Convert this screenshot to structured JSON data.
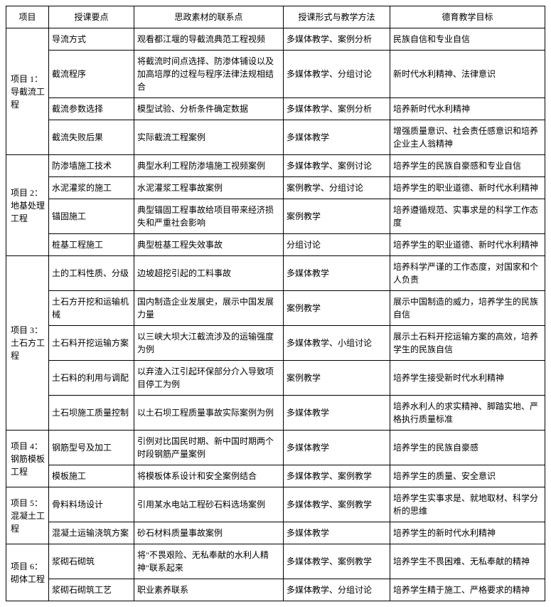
{
  "headers": {
    "project": "项目",
    "point": "授课要点",
    "material": "思政素材的联系点",
    "method": "授课形式与教学方法",
    "goal": "德育教学目标"
  },
  "projects": [
    {
      "label": "项目 1：导截流工程",
      "rows": [
        {
          "point": "导流方式",
          "material": "观看都江堰的导截流典范工程视频",
          "method": "多媒体教学、案例分析",
          "goal": "民族自信和专业自信"
        },
        {
          "point": "截流程序",
          "material": "将截流时间点选择、防渗体铺设以及加高培厚的过程与程序法律法规相结合",
          "method": "多媒体教学、分组讨论",
          "goal": "新时代水利精神、法律意识"
        },
        {
          "point": "截流参数选择",
          "material": "模型试验、分析条件确定数据",
          "method": "多媒体教学、案例分析",
          "goal": "培养新时代水利精神"
        },
        {
          "point": "截流失败后果",
          "material": "实际截流工程案例",
          "method": "多媒体教学",
          "goal": "增强质量意识、社会责任感意识和培养企业主人翁精神"
        }
      ]
    },
    {
      "label": "项目 2：地基处理工程",
      "rows": [
        {
          "point": "防渗墙施工技术",
          "material": "典型水利工程防渗墙施工视频案例",
          "method": "多媒体教学、案例讨论",
          "goal": "培养学生的民族自豪感和专业自信"
        },
        {
          "point": "水泥灌浆的施工",
          "material": "水泥灌浆工程事故案例",
          "method": "案例教学、分组讨论",
          "goal": "培养学生的职业道德、新时代水利精神"
        },
        {
          "point": "锚固施工",
          "material": "典型锚固工程事故给项目带来经济损失和严重社会影响",
          "method": "案例教学",
          "goal": "培养遵循规范、实事求是的科学工作态度"
        },
        {
          "point": "桩基工程施工",
          "material": "典型桩基工程失效事故",
          "method": "分组讨论",
          "goal": "培养学生的职业道德、新时代水利精神"
        }
      ]
    },
    {
      "label": "项目 3：土石方工程",
      "rows": [
        {
          "point": "土的工料性质、分级",
          "material": "边坡超挖引起的工料事故",
          "method": "多媒体教学",
          "goal": "培养科学严谨的工作态度，对国家和个人负责"
        },
        {
          "point": "土石方开挖和运输机械",
          "material": "国内制造企业发展史，展示中国发展力量",
          "method": "案例教学",
          "goal": "展示中国制造的威力，培养学生的民族自信"
        },
        {
          "point": "土石料开挖运输方案",
          "material": "以三峡大坝大江截流涉及的运输强度为例",
          "method": "多媒体教学、小组讨论",
          "goal": "展示土石料开挖运输方案的高效，培养学生的民族自信"
        },
        {
          "point": "土石料的利用与调配",
          "material": "以弃渣入江引起环保部分介入导致项目停工为例",
          "method": "案例教学",
          "goal": "培养学生接受新时代水利精神"
        },
        {
          "point": "土石坝施工质量控制",
          "material": "以土石坝工程质量事故实际案例为例",
          "method": "多媒体教学",
          "goal": "培养水利人的求实精神、脚踏实地、严格执行质量标准"
        }
      ]
    },
    {
      "label": "项目 4：钢筋模板工程",
      "rows": [
        {
          "point": "钢筋型号及加工",
          "material": "引例对比国民时期、新中国时期两个时段钢筋产量案例",
          "method": "多媒体教学",
          "goal": "培养学生的民族自豪感"
        },
        {
          "point": "模板施工",
          "material": "将模板体系设计和安全案例结合",
          "method": "多媒体教学、案例教学",
          "goal": "培养学生的质量、安全意识"
        }
      ]
    },
    {
      "label": "项目 5：混凝土工程",
      "rows": [
        {
          "point": "骨料料场设计",
          "material": "引用某水电站工程砂石料选场案例",
          "method": "多媒体教学、案例教学",
          "goal": "培养学生实事求是、就地取材、科学分析的思维"
        },
        {
          "point": "混凝土运输浇筑方案",
          "material": "砂石材料质量事故案例",
          "method": "多媒体教学",
          "goal": "培养学生的新时代水利精神"
        }
      ]
    },
    {
      "label": "项目 6：砌体工程",
      "rows": [
        {
          "point": "浆砌石砌筑",
          "material": "将\"不畏艰险、无私奉献的水利人精神\"联系起来",
          "method": "多媒体教学、案例教学",
          "goal": "培养学生不畏困难、无私奉献的精神"
        },
        {
          "point": "浆砌石砌筑工艺",
          "material": "职业素养联系",
          "method": "多媒体教学、分组讨论",
          "goal": "培养学生精于施工、严格要求的精神"
        }
      ]
    }
  ]
}
